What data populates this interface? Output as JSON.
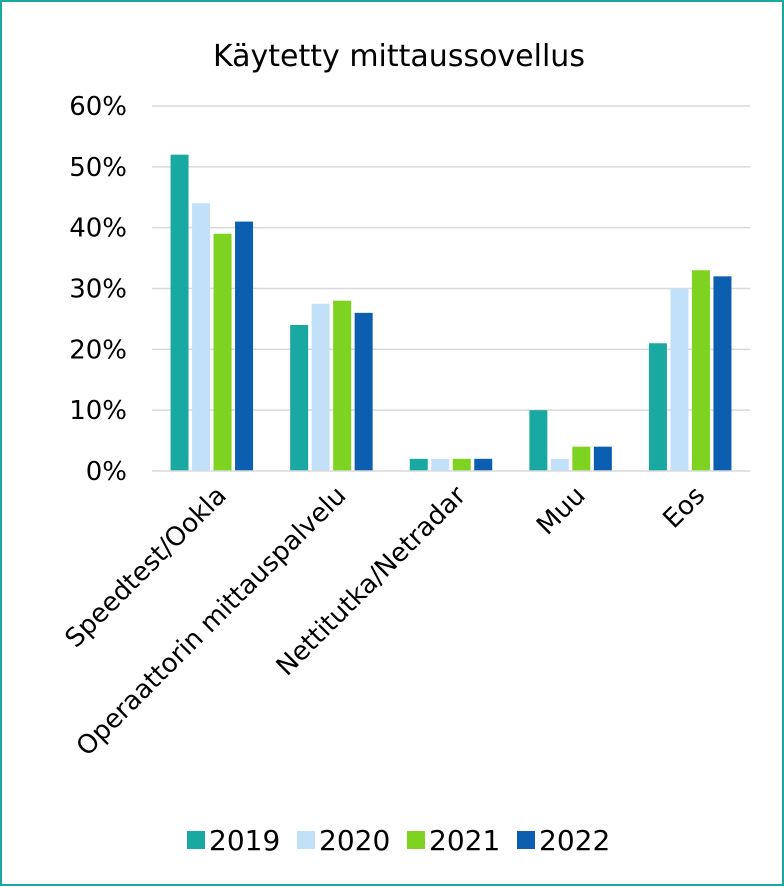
{
  "chart_data": {
    "type": "bar",
    "title": "Käytetty mittaussovellus",
    "xlabel": "",
    "ylabel": "",
    "ylim": [
      0,
      0.6
    ],
    "y_ticks": [
      "0%",
      "10%",
      "20%",
      "30%",
      "40%",
      "50%",
      "60%"
    ],
    "grid": true,
    "legend_position": "bottom",
    "categories": [
      "Speedtest/Ookla",
      "Operaattorin mittauspalvelu",
      "Nettitutka/Netradar",
      "Muu",
      "Eos"
    ],
    "series": [
      {
        "name": "2019",
        "color": "#1aa9a2",
        "values": [
          0.52,
          0.24,
          0.02,
          0.1,
          0.21
        ]
      },
      {
        "name": "2020",
        "color": "#c2e0f8",
        "values": [
          0.44,
          0.275,
          0.02,
          0.02,
          0.3
        ]
      },
      {
        "name": "2021",
        "color": "#7ed321",
        "values": [
          0.39,
          0.28,
          0.02,
          0.04,
          0.33
        ]
      },
      {
        "name": "2022",
        "color": "#0b5eb0",
        "values": [
          0.41,
          0.26,
          0.02,
          0.04,
          0.32
        ]
      }
    ]
  }
}
